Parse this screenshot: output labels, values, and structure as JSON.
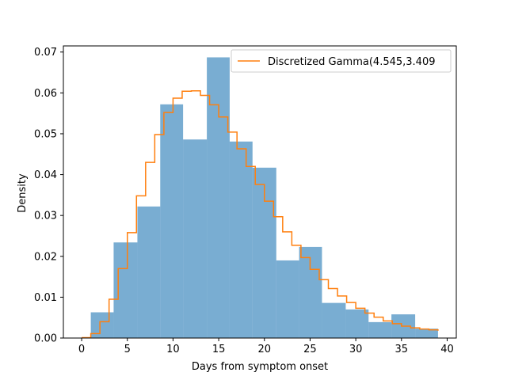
{
  "chart_data": {
    "type": "bar",
    "xlabel": "Days from symptom onset",
    "ylabel": "Density",
    "xlim": [
      -2.0,
      41.0
    ],
    "ylim": [
      0,
      0.0715
    ],
    "xticks": [
      0,
      5,
      10,
      15,
      20,
      25,
      30,
      35,
      40
    ],
    "yticks": [
      0.0,
      0.01,
      0.02,
      0.03,
      0.04,
      0.05,
      0.06,
      0.07
    ],
    "ytick_labels": [
      "0.00",
      "0.01",
      "0.02",
      "0.03",
      "0.04",
      "0.05",
      "0.06",
      "0.07"
    ],
    "grid": false,
    "legend_position": "top-right",
    "histogram": {
      "color": "#1f77b4",
      "alpha": 0.6,
      "bin_edges": [
        1.0,
        3.5,
        6.1,
        8.6,
        11.1,
        13.7,
        16.2,
        18.7,
        21.3,
        23.8,
        26.3,
        28.9,
        31.4,
        33.9,
        36.5,
        39.0
      ],
      "density": [
        0.0063,
        0.0234,
        0.0322,
        0.0572,
        0.0486,
        0.0687,
        0.0481,
        0.0417,
        0.019,
        0.0223,
        0.0086,
        0.007,
        0.0039,
        0.0058,
        0.0023
      ]
    },
    "series": [
      {
        "name": "Discretized Gamma(4.545,3.409",
        "type": "step",
        "color": "#ff7f0e",
        "x": [
          0,
          1,
          2,
          3,
          4,
          5,
          6,
          7,
          8,
          9,
          10,
          11,
          12,
          13,
          14,
          15,
          16,
          17,
          18,
          19,
          20,
          21,
          22,
          23,
          24,
          25,
          26,
          27,
          28,
          29,
          30,
          31,
          32,
          33,
          34,
          35,
          36,
          37,
          38,
          39
        ],
        "values": [
          0.0001,
          0.0011,
          0.004,
          0.0095,
          0.017,
          0.0258,
          0.0348,
          0.043,
          0.0498,
          0.0552,
          0.0587,
          0.0604,
          0.0605,
          0.0594,
          0.0571,
          0.0541,
          0.0504,
          0.0463,
          0.042,
          0.0376,
          0.0335,
          0.0297,
          0.026,
          0.0227,
          0.0197,
          0.0168,
          0.0143,
          0.0121,
          0.0103,
          0.0087,
          0.0073,
          0.0061,
          0.0051,
          0.0042,
          0.0035,
          0.0029,
          0.0025,
          0.0022,
          0.002,
          0.0018
        ]
      }
    ]
  }
}
